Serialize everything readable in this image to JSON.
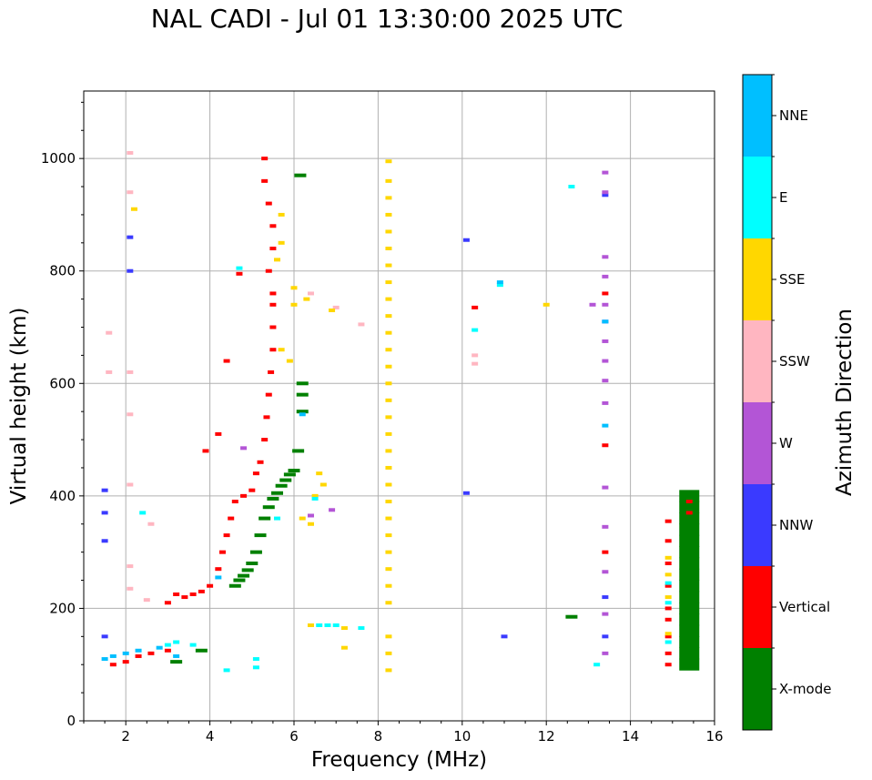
{
  "chart_data": {
    "type": "scatter",
    "title": "NAL CADI - Jul 01 13:30:00 2025 UTC",
    "xlabel": "Frequency (MHz)",
    "ylabel": "Virtual height (km)",
    "xlim": [
      1,
      16
    ],
    "ylim": [
      0,
      1120
    ],
    "xticks": [
      2,
      4,
      6,
      8,
      10,
      12,
      14,
      16
    ],
    "yticks": [
      0,
      200,
      400,
      600,
      800,
      1000
    ],
    "grid": true,
    "colorbar": {
      "label": "Azimuth Direction",
      "categories": [
        {
          "name": "X-mode",
          "color": "#008000"
        },
        {
          "name": "Vertical",
          "color": "#ff0000"
        },
        {
          "name": "NNW",
          "color": "#3a3aff"
        },
        {
          "name": "W",
          "color": "#b355d6"
        },
        {
          "name": "SSW",
          "color": "#ffb6c1"
        },
        {
          "name": "SSE",
          "color": "#ffd700"
        },
        {
          "name": "E",
          "color": "#00ffff"
        },
        {
          "name": "NNE",
          "color": "#00bfff"
        }
      ]
    },
    "series": [
      {
        "name": "X-mode",
        "points": [
          [
            4.6,
            240
          ],
          [
            4.7,
            250
          ],
          [
            4.8,
            258
          ],
          [
            4.9,
            268
          ],
          [
            5.0,
            280
          ],
          [
            5.1,
            300
          ],
          [
            5.2,
            330
          ],
          [
            5.3,
            360
          ],
          [
            5.4,
            380
          ],
          [
            5.5,
            395
          ],
          [
            5.6,
            405
          ],
          [
            5.7,
            418
          ],
          [
            5.8,
            428
          ],
          [
            5.9,
            438
          ],
          [
            6.0,
            445
          ],
          [
            6.1,
            480
          ],
          [
            6.2,
            550
          ],
          [
            6.2,
            580
          ],
          [
            6.2,
            600
          ],
          [
            6.15,
            970
          ],
          [
            3.2,
            105
          ],
          [
            3.8,
            125
          ],
          [
            12.6,
            185
          ],
          [
            15.4,
            400
          ],
          [
            15.4,
            380
          ],
          [
            15.4,
            360
          ],
          [
            15.4,
            340
          ],
          [
            15.4,
            320
          ],
          [
            15.4,
            300
          ],
          [
            15.4,
            280
          ],
          [
            15.4,
            260
          ],
          [
            15.4,
            240
          ],
          [
            15.4,
            220
          ],
          [
            15.4,
            200
          ],
          [
            15.4,
            180
          ],
          [
            15.4,
            160
          ],
          [
            15.4,
            140
          ],
          [
            15.4,
            120
          ],
          [
            15.4,
            100
          ]
        ]
      },
      {
        "name": "Vertical",
        "points": [
          [
            1.7,
            100
          ],
          [
            2.0,
            105
          ],
          [
            2.3,
            115
          ],
          [
            2.6,
            120
          ],
          [
            3.0,
            125
          ],
          [
            3.0,
            210
          ],
          [
            3.2,
            225
          ],
          [
            3.4,
            220
          ],
          [
            3.6,
            225
          ],
          [
            3.8,
            230
          ],
          [
            4.0,
            240
          ],
          [
            4.2,
            270
          ],
          [
            4.3,
            300
          ],
          [
            4.4,
            330
          ],
          [
            4.5,
            360
          ],
          [
            4.6,
            390
          ],
          [
            4.8,
            400
          ],
          [
            5.0,
            410
          ],
          [
            5.1,
            440
          ],
          [
            5.2,
            460
          ],
          [
            5.3,
            500
          ],
          [
            5.35,
            540
          ],
          [
            5.4,
            580
          ],
          [
            5.45,
            620
          ],
          [
            5.5,
            660
          ],
          [
            5.5,
            700
          ],
          [
            5.5,
            740
          ],
          [
            5.5,
            760
          ],
          [
            5.4,
            800
          ],
          [
            5.5,
            840
          ],
          [
            5.5,
            880
          ],
          [
            5.4,
            920
          ],
          [
            5.3,
            960
          ],
          [
            5.3,
            1000
          ],
          [
            4.7,
            795
          ],
          [
            4.4,
            640
          ],
          [
            3.9,
            480
          ],
          [
            4.2,
            510
          ],
          [
            10.3,
            735
          ],
          [
            13.4,
            760
          ],
          [
            13.4,
            490
          ],
          [
            13.4,
            300
          ],
          [
            14.9,
            355
          ],
          [
            14.9,
            320
          ],
          [
            14.9,
            280
          ],
          [
            14.9,
            240
          ],
          [
            14.9,
            200
          ],
          [
            14.9,
            180
          ],
          [
            14.9,
            150
          ],
          [
            14.9,
            120
          ],
          [
            14.9,
            100
          ],
          [
            15.4,
            390
          ],
          [
            15.4,
            370
          ]
        ]
      },
      {
        "name": "NNW",
        "points": [
          [
            1.5,
            410
          ],
          [
            1.5,
            370
          ],
          [
            1.5,
            320
          ],
          [
            1.5,
            150
          ],
          [
            2.1,
            800
          ],
          [
            2.1,
            860
          ],
          [
            10.1,
            855
          ],
          [
            10.1,
            405
          ],
          [
            11.0,
            150
          ],
          [
            13.4,
            935
          ],
          [
            13.4,
            710
          ],
          [
            13.4,
            220
          ],
          [
            13.4,
            150
          ]
        ]
      },
      {
        "name": "W",
        "points": [
          [
            6.4,
            365
          ],
          [
            6.9,
            375
          ],
          [
            4.8,
            485
          ],
          [
            13.4,
            975
          ],
          [
            13.4,
            940
          ],
          [
            13.4,
            825
          ],
          [
            13.4,
            790
          ],
          [
            13.4,
            740
          ],
          [
            13.4,
            675
          ],
          [
            13.4,
            640
          ],
          [
            13.4,
            605
          ],
          [
            13.4,
            565
          ],
          [
            13.4,
            415
          ],
          [
            13.4,
            345
          ],
          [
            13.4,
            265
          ],
          [
            13.4,
            190
          ],
          [
            13.4,
            120
          ],
          [
            13.1,
            740
          ]
        ]
      },
      {
        "name": "SSW",
        "points": [
          [
            2.1,
            1010
          ],
          [
            2.1,
            940
          ],
          [
            2.1,
            620
          ],
          [
            2.1,
            545
          ],
          [
            2.1,
            420
          ],
          [
            2.1,
            275
          ],
          [
            2.1,
            235
          ],
          [
            1.6,
            690
          ],
          [
            1.6,
            620
          ],
          [
            2.6,
            350
          ],
          [
            10.3,
            650
          ],
          [
            10.3,
            635
          ],
          [
            7.6,
            705
          ],
          [
            7.0,
            735
          ],
          [
            6.4,
            760
          ],
          [
            2.5,
            215
          ]
        ]
      },
      {
        "name": "SSE",
        "points": [
          [
            8.25,
            995
          ],
          [
            8.25,
            960
          ],
          [
            8.25,
            930
          ],
          [
            8.25,
            900
          ],
          [
            8.25,
            870
          ],
          [
            8.25,
            840
          ],
          [
            8.25,
            810
          ],
          [
            8.25,
            780
          ],
          [
            8.25,
            750
          ],
          [
            8.25,
            720
          ],
          [
            8.25,
            690
          ],
          [
            8.25,
            660
          ],
          [
            8.25,
            630
          ],
          [
            8.25,
            600
          ],
          [
            8.25,
            570
          ],
          [
            8.25,
            540
          ],
          [
            8.25,
            510
          ],
          [
            8.25,
            480
          ],
          [
            8.25,
            450
          ],
          [
            8.25,
            420
          ],
          [
            8.25,
            390
          ],
          [
            8.25,
            360
          ],
          [
            8.25,
            330
          ],
          [
            8.25,
            300
          ],
          [
            8.25,
            270
          ],
          [
            8.25,
            240
          ],
          [
            8.25,
            210
          ],
          [
            8.25,
            150
          ],
          [
            8.25,
            120
          ],
          [
            8.25,
            90
          ],
          [
            5.7,
            900
          ],
          [
            5.7,
            850
          ],
          [
            5.6,
            820
          ],
          [
            6.0,
            770
          ],
          [
            6.0,
            740
          ],
          [
            5.9,
            640
          ],
          [
            5.7,
            660
          ],
          [
            6.3,
            750
          ],
          [
            6.5,
            400
          ],
          [
            6.6,
            440
          ],
          [
            6.7,
            420
          ],
          [
            6.2,
            360
          ],
          [
            6.4,
            350
          ],
          [
            6.9,
            730
          ],
          [
            7.2,
            165
          ],
          [
            7.2,
            130
          ],
          [
            12.0,
            740
          ],
          [
            6.4,
            170
          ],
          [
            14.9,
            290
          ],
          [
            14.9,
            260
          ],
          [
            14.9,
            220
          ],
          [
            14.9,
            155
          ],
          [
            2.2,
            910
          ]
        ]
      },
      {
        "name": "E",
        "points": [
          [
            6.6,
            170
          ],
          [
            6.8,
            170
          ],
          [
            7.0,
            170
          ],
          [
            7.6,
            165
          ],
          [
            5.1,
            110
          ],
          [
            5.1,
            95
          ],
          [
            4.4,
            90
          ],
          [
            3.0,
            135
          ],
          [
            3.2,
            140
          ],
          [
            3.6,
            135
          ],
          [
            10.3,
            695
          ],
          [
            10.9,
            775
          ],
          [
            12.6,
            950
          ],
          [
            13.2,
            100
          ],
          [
            2.4,
            370
          ],
          [
            5.6,
            360
          ],
          [
            4.7,
            805
          ],
          [
            6.5,
            395
          ],
          [
            14.9,
            245
          ],
          [
            14.9,
            210
          ],
          [
            14.9,
            140
          ]
        ]
      },
      {
        "name": "NNE",
        "points": [
          [
            1.5,
            110
          ],
          [
            1.7,
            115
          ],
          [
            2.0,
            120
          ],
          [
            2.3,
            125
          ],
          [
            2.8,
            130
          ],
          [
            3.2,
            115
          ],
          [
            4.2,
            255
          ],
          [
            6.2,
            545
          ],
          [
            13.4,
            525
          ],
          [
            13.4,
            710
          ],
          [
            10.9,
            780
          ]
        ]
      }
    ]
  }
}
